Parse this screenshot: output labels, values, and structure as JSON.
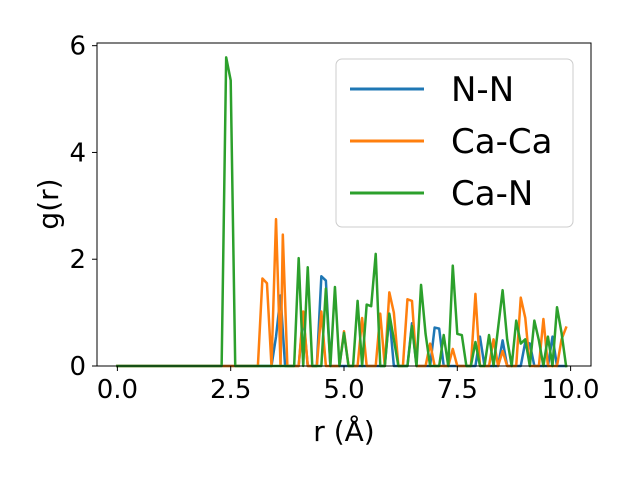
{
  "chart_data": {
    "type": "line",
    "title": "",
    "xlabel": "r (Å)",
    "ylabel": "g(r)",
    "xlim": [
      -0.45,
      10.45
    ],
    "ylim": [
      0,
      6.05
    ],
    "xticks": [
      0.0,
      2.5,
      5.0,
      7.5,
      10.0
    ],
    "xtick_labels": [
      "0.0",
      "2.5",
      "5.0",
      "7.5",
      "10.0"
    ],
    "yticks": [
      0,
      2,
      4,
      6
    ],
    "ytick_labels": [
      "0",
      "2",
      "4",
      "6"
    ],
    "grid": false,
    "legend_position": "top-right",
    "series": [
      {
        "name": "N-N",
        "color": "#1f77b4",
        "points": [
          [
            0.0,
            0
          ],
          [
            3.4,
            0
          ],
          [
            3.5,
            0.55
          ],
          [
            3.6,
            1.32
          ],
          [
            3.7,
            0
          ],
          [
            4.0,
            0
          ],
          [
            4.1,
            0.95
          ],
          [
            4.2,
            0
          ],
          [
            4.4,
            0
          ],
          [
            4.5,
            1.68
          ],
          [
            4.6,
            1.6
          ],
          [
            4.7,
            0
          ],
          [
            5.9,
            0
          ],
          [
            6.0,
            0.95
          ],
          [
            6.1,
            0
          ],
          [
            6.4,
            0
          ],
          [
            6.5,
            0.8
          ],
          [
            6.6,
            0
          ],
          [
            6.9,
            0
          ],
          [
            7.0,
            0.72
          ],
          [
            7.1,
            0.7
          ],
          [
            7.2,
            0
          ],
          [
            7.9,
            0
          ],
          [
            8.0,
            0.55
          ],
          [
            8.1,
            0
          ],
          [
            8.4,
            0
          ],
          [
            8.5,
            0.48
          ],
          [
            8.6,
            0
          ],
          [
            8.9,
            0
          ],
          [
            9.0,
            0.45
          ],
          [
            9.1,
            0.42
          ],
          [
            9.2,
            0
          ],
          [
            9.5,
            0
          ],
          [
            9.6,
            0.55
          ],
          [
            9.7,
            0
          ],
          [
            9.9,
            0
          ]
        ]
      },
      {
        "name": "Ca-Ca",
        "color": "#ff7f0e",
        "points": [
          [
            0.0,
            0
          ],
          [
            3.1,
            0
          ],
          [
            3.2,
            1.64
          ],
          [
            3.3,
            1.55
          ],
          [
            3.4,
            0
          ],
          [
            3.5,
            2.75
          ],
          [
            3.6,
            0
          ],
          [
            3.65,
            2.46
          ],
          [
            3.75,
            0
          ],
          [
            4.0,
            0
          ],
          [
            4.1,
            1.02
          ],
          [
            4.2,
            0
          ],
          [
            4.4,
            0
          ],
          [
            4.5,
            1.02
          ],
          [
            4.6,
            0
          ],
          [
            4.9,
            0
          ],
          [
            5.0,
            0.65
          ],
          [
            5.1,
            0
          ],
          [
            5.3,
            0
          ],
          [
            5.4,
            0.9
          ],
          [
            5.5,
            0
          ],
          [
            5.7,
            0
          ],
          [
            5.8,
            0.98
          ],
          [
            5.9,
            0
          ],
          [
            6.0,
            1.38
          ],
          [
            6.1,
            1.0
          ],
          [
            6.2,
            0
          ],
          [
            6.3,
            0
          ],
          [
            6.4,
            1.25
          ],
          [
            6.5,
            1.22
          ],
          [
            6.6,
            0
          ],
          [
            6.8,
            0
          ],
          [
            6.9,
            0.42
          ],
          [
            7.0,
            0
          ],
          [
            7.3,
            0
          ],
          [
            7.4,
            0.32
          ],
          [
            7.5,
            0
          ],
          [
            7.8,
            0
          ],
          [
            7.9,
            1.35
          ],
          [
            8.0,
            0
          ],
          [
            8.2,
            0
          ],
          [
            8.3,
            0.5
          ],
          [
            8.4,
            0
          ],
          [
            8.5,
            0.28
          ],
          [
            8.6,
            0
          ],
          [
            8.8,
            0
          ],
          [
            8.9,
            1.28
          ],
          [
            9.0,
            0.9
          ],
          [
            9.1,
            0
          ],
          [
            9.3,
            0
          ],
          [
            9.4,
            0.88
          ],
          [
            9.5,
            0
          ],
          [
            9.7,
            0
          ],
          [
            9.8,
            0.5
          ],
          [
            9.9,
            0.72
          ]
        ]
      },
      {
        "name": "Ca-N",
        "color": "#2ca02c",
        "points": [
          [
            0.0,
            0
          ],
          [
            2.3,
            0
          ],
          [
            2.4,
            5.78
          ],
          [
            2.5,
            5.35
          ],
          [
            2.6,
            0
          ],
          [
            3.9,
            0
          ],
          [
            4.0,
            2.02
          ],
          [
            4.1,
            0
          ],
          [
            4.2,
            1.85
          ],
          [
            4.3,
            0
          ],
          [
            4.5,
            0
          ],
          [
            4.6,
            1.45
          ],
          [
            4.7,
            0
          ],
          [
            4.8,
            1.48
          ],
          [
            4.9,
            0
          ],
          [
            5.0,
            0.62
          ],
          [
            5.1,
            0
          ],
          [
            5.2,
            0
          ],
          [
            5.3,
            1.22
          ],
          [
            5.4,
            0
          ],
          [
            5.5,
            1.15
          ],
          [
            5.6,
            1.12
          ],
          [
            5.7,
            2.1
          ],
          [
            5.8,
            0
          ],
          [
            5.9,
            0
          ],
          [
            6.0,
            0.98
          ],
          [
            6.1,
            0.5
          ],
          [
            6.2,
            0
          ],
          [
            6.4,
            0
          ],
          [
            6.5,
            0.75
          ],
          [
            6.6,
            0
          ],
          [
            6.7,
            1.52
          ],
          [
            6.8,
            0.6
          ],
          [
            6.9,
            0
          ],
          [
            7.1,
            0
          ],
          [
            7.2,
            0.58
          ],
          [
            7.3,
            0
          ],
          [
            7.4,
            1.88
          ],
          [
            7.5,
            0.6
          ],
          [
            7.6,
            0.58
          ],
          [
            7.7,
            0
          ],
          [
            7.8,
            0
          ],
          [
            7.9,
            0.45
          ],
          [
            8.0,
            0
          ],
          [
            8.1,
            0
          ],
          [
            8.2,
            0.58
          ],
          [
            8.3,
            0
          ],
          [
            8.5,
            1.42
          ],
          [
            8.6,
            0.5
          ],
          [
            8.7,
            0
          ],
          [
            8.8,
            0.85
          ],
          [
            8.9,
            0.42
          ],
          [
            9.0,
            0.5
          ],
          [
            9.1,
            0
          ],
          [
            9.2,
            0.85
          ],
          [
            9.3,
            0.48
          ],
          [
            9.4,
            0
          ],
          [
            9.5,
            0.55
          ],
          [
            9.6,
            0
          ],
          [
            9.7,
            1.1
          ],
          [
            9.8,
            0.62
          ],
          [
            9.9,
            0
          ]
        ]
      }
    ]
  }
}
